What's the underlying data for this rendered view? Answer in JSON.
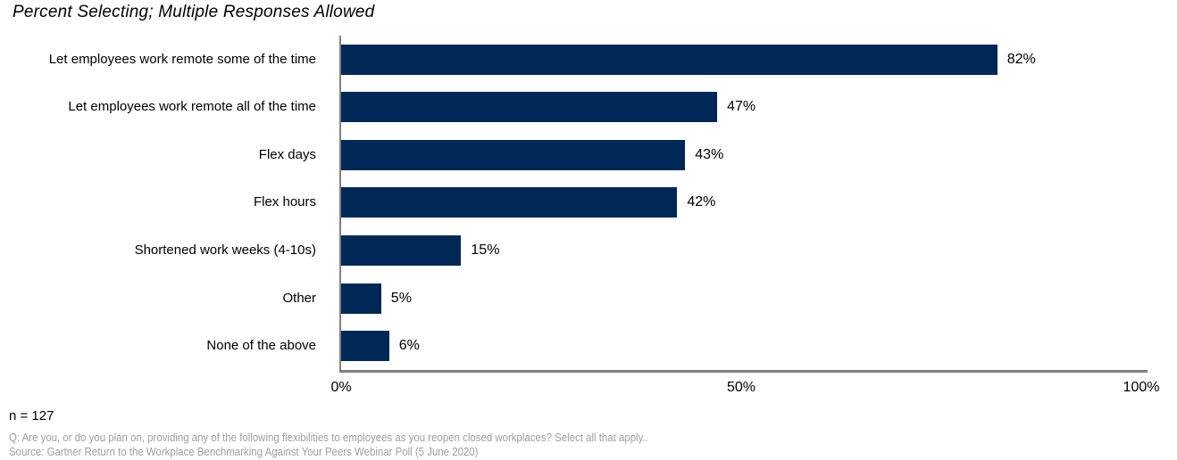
{
  "chart_data": {
    "type": "bar",
    "orientation": "horizontal",
    "title": "Percent Selecting; Multiple Responses Allowed",
    "categories": [
      "Let employees work remote some of the time",
      "Let employees work remote all of the time",
      "Flex days",
      "Flex hours",
      "Shortened work weeks (4-10s)",
      "Other",
      "None of the above"
    ],
    "values": [
      82,
      47,
      43,
      42,
      15,
      5,
      6
    ],
    "value_labels": [
      "82%",
      "47%",
      "43%",
      "42%",
      "15%",
      "5%",
      "6%"
    ],
    "x_ticks": [
      "0%",
      "50%",
      "100%"
    ],
    "xlim": [
      0,
      100
    ],
    "grid": false,
    "legend_position": "none",
    "bar_color": "#002856",
    "axis_color": "#808080",
    "footer_text_color": "#9e9e9e"
  },
  "footer": {
    "sample_size": "n = 127",
    "question": "Q: Are you, or do you plan on, providing any of the following flexibilities to employees as you reopen closed workplaces? Select all that apply..",
    "source": "Source: Gartner Return to the Workplace Benchmarking Against Your Peers Webinar Poll (5 June 2020)"
  }
}
